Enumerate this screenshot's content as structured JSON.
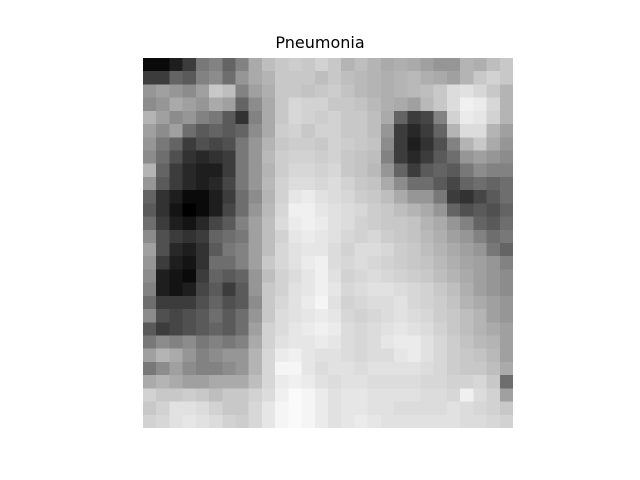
{
  "figure": {
    "title": "Pneumonia"
  },
  "image": {
    "grid_rows": 28,
    "grid_cols": 28,
    "colormap": "gray",
    "pixels": [
      [
        10,
        10,
        30,
        60,
        120,
        130,
        100,
        130,
        170,
        190,
        200,
        205,
        200,
        210,
        200,
        180,
        190,
        180,
        170,
        175,
        170,
        160,
        150,
        150,
        180,
        175,
        190,
        200
      ],
      [
        60,
        60,
        100,
        90,
        130,
        140,
        110,
        150,
        170,
        180,
        200,
        200,
        200,
        190,
        200,
        190,
        185,
        180,
        175,
        180,
        185,
        175,
        170,
        160,
        180,
        200,
        210,
        200
      ],
      [
        150,
        160,
        150,
        140,
        160,
        200,
        190,
        130,
        160,
        175,
        200,
        200,
        195,
        200,
        205,
        195,
        185,
        180,
        175,
        180,
        185,
        190,
        200,
        220,
        225,
        215,
        200,
        180
      ],
      [
        140,
        150,
        170,
        160,
        150,
        170,
        160,
        100,
        140,
        170,
        200,
        215,
        210,
        210,
        200,
        200,
        195,
        185,
        175,
        170,
        160,
        185,
        200,
        220,
        240,
        235,
        215,
        180
      ],
      [
        180,
        160,
        140,
        150,
        130,
        120,
        90,
        50,
        130,
        170,
        200,
        215,
        210,
        205,
        210,
        200,
        200,
        190,
        170,
        100,
        60,
        70,
        130,
        210,
        235,
        230,
        210,
        180
      ],
      [
        160,
        140,
        160,
        110,
        90,
        100,
        90,
        100,
        140,
        170,
        205,
        210,
        200,
        210,
        210,
        200,
        200,
        190,
        150,
        60,
        40,
        60,
        100,
        180,
        220,
        220,
        180,
        160
      ],
      [
        150,
        120,
        100,
        60,
        80,
        70,
        80,
        120,
        150,
        180,
        200,
        205,
        205,
        200,
        210,
        205,
        200,
        195,
        140,
        60,
        30,
        50,
        80,
        130,
        180,
        200,
        170,
        150
      ],
      [
        140,
        110,
        80,
        50,
        40,
        50,
        60,
        120,
        150,
        185,
        205,
        210,
        210,
        205,
        210,
        200,
        195,
        190,
        130,
        60,
        40,
        60,
        90,
        110,
        150,
        160,
        150,
        140
      ],
      [
        180,
        100,
        60,
        40,
        30,
        30,
        60,
        120,
        150,
        180,
        205,
        215,
        215,
        210,
        215,
        200,
        195,
        185,
        150,
        100,
        60,
        90,
        100,
        90,
        120,
        140,
        130,
        130
      ],
      [
        150,
        90,
        60,
        40,
        30,
        40,
        70,
        120,
        150,
        185,
        210,
        220,
        220,
        215,
        220,
        210,
        200,
        195,
        170,
        140,
        110,
        110,
        90,
        70,
        100,
        110,
        100,
        110
      ],
      [
        100,
        50,
        30,
        10,
        10,
        30,
        60,
        110,
        140,
        180,
        210,
        230,
        235,
        225,
        220,
        215,
        205,
        200,
        190,
        170,
        150,
        150,
        120,
        60,
        50,
        70,
        90,
        110
      ],
      [
        90,
        50,
        20,
        0,
        10,
        30,
        70,
        110,
        150,
        185,
        215,
        240,
        240,
        230,
        225,
        220,
        215,
        205,
        200,
        190,
        180,
        170,
        150,
        100,
        80,
        90,
        80,
        100
      ],
      [
        110,
        60,
        30,
        20,
        40,
        70,
        90,
        130,
        160,
        190,
        220,
        235,
        240,
        235,
        225,
        220,
        210,
        205,
        200,
        200,
        195,
        180,
        170,
        150,
        130,
        100,
        90,
        110
      ],
      [
        140,
        80,
        60,
        50,
        60,
        100,
        110,
        120,
        160,
        190,
        210,
        230,
        235,
        230,
        225,
        215,
        210,
        215,
        205,
        200,
        195,
        185,
        175,
        160,
        150,
        130,
        110,
        120
      ],
      [
        160,
        80,
        40,
        30,
        50,
        90,
        120,
        130,
        160,
        190,
        215,
        225,
        230,
        230,
        220,
        210,
        220,
        220,
        215,
        205,
        200,
        190,
        180,
        170,
        160,
        150,
        120,
        100
      ],
      [
        150,
        60,
        30,
        20,
        50,
        110,
        110,
        130,
        160,
        200,
        215,
        225,
        235,
        240,
        220,
        215,
        220,
        215,
        210,
        205,
        200,
        195,
        185,
        175,
        165,
        160,
        150,
        130
      ],
      [
        140,
        30,
        20,
        10,
        60,
        100,
        90,
        100,
        150,
        190,
        210,
        220,
        230,
        240,
        225,
        210,
        215,
        220,
        215,
        210,
        205,
        200,
        190,
        180,
        170,
        160,
        150,
        140
      ],
      [
        130,
        30,
        20,
        30,
        70,
        90,
        60,
        90,
        150,
        200,
        210,
        225,
        230,
        240,
        230,
        215,
        220,
        225,
        225,
        220,
        215,
        210,
        200,
        190,
        175,
        160,
        150,
        140
      ],
      [
        110,
        60,
        60,
        60,
        80,
        100,
        80,
        90,
        140,
        200,
        215,
        225,
        235,
        245,
        225,
        210,
        215,
        220,
        220,
        225,
        215,
        210,
        205,
        195,
        180,
        170,
        160,
        150
      ],
      [
        140,
        80,
        70,
        80,
        90,
        110,
        90,
        110,
        150,
        200,
        220,
        225,
        230,
        235,
        230,
        215,
        210,
        215,
        220,
        225,
        220,
        215,
        205,
        200,
        190,
        180,
        160,
        150
      ],
      [
        90,
        60,
        70,
        80,
        90,
        100,
        90,
        110,
        160,
        210,
        220,
        230,
        235,
        240,
        235,
        220,
        215,
        220,
        225,
        230,
        225,
        220,
        210,
        200,
        190,
        180,
        170,
        160
      ],
      [
        120,
        140,
        130,
        140,
        120,
        130,
        120,
        130,
        170,
        210,
        225,
        230,
        230,
        235,
        230,
        220,
        215,
        220,
        230,
        235,
        235,
        225,
        215,
        205,
        195,
        185,
        180,
        160
      ],
      [
        160,
        180,
        170,
        150,
        130,
        140,
        150,
        150,
        180,
        215,
        235,
        240,
        230,
        225,
        225,
        220,
        215,
        220,
        220,
        230,
        235,
        225,
        215,
        205,
        200,
        195,
        185,
        160
      ],
      [
        120,
        140,
        160,
        140,
        130,
        130,
        140,
        150,
        180,
        215,
        245,
        245,
        230,
        220,
        225,
        225,
        220,
        225,
        225,
        225,
        225,
        220,
        215,
        205,
        200,
        200,
        190,
        170
      ],
      [
        170,
        180,
        170,
        160,
        160,
        170,
        170,
        170,
        190,
        215,
        235,
        240,
        235,
        225,
        220,
        225,
        225,
        220,
        220,
        220,
        220,
        215,
        215,
        210,
        210,
        215,
        200,
        110
      ],
      [
        210,
        200,
        200,
        205,
        200,
        190,
        200,
        200,
        210,
        220,
        240,
        250,
        245,
        235,
        225,
        230,
        230,
        225,
        225,
        225,
        225,
        220,
        220,
        215,
        240,
        220,
        210,
        160
      ],
      [
        200,
        210,
        225,
        225,
        220,
        210,
        200,
        200,
        215,
        230,
        245,
        250,
        245,
        235,
        225,
        230,
        230,
        225,
        225,
        220,
        220,
        220,
        220,
        225,
        220,
        215,
        210,
        200
      ],
      [
        210,
        215,
        225,
        230,
        225,
        220,
        210,
        205,
        215,
        230,
        245,
        250,
        245,
        235,
        225,
        230,
        235,
        230,
        225,
        225,
        225,
        225,
        225,
        225,
        220,
        220,
        215,
        210
      ]
    ]
  }
}
